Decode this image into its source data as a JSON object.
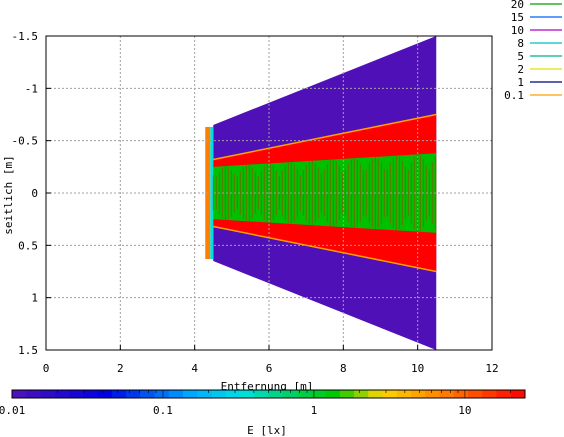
{
  "chart_data": {
    "type": "heatmap",
    "xlabel": "Entfernung [m]",
    "ylabel": "seitlich [m]",
    "xlim": [
      0,
      12
    ],
    "ylim": [
      1.5,
      -1.5
    ],
    "x_ticks": [
      "0",
      "2",
      "4",
      "6",
      "8",
      "10",
      "12"
    ],
    "y_ticks": [
      "-1.5",
      "-1",
      "-0.5",
      "0",
      "0.5",
      "1",
      "1.5"
    ],
    "grid": true,
    "legend_position": "top-right",
    "legend": [
      {
        "label": "20",
        "color": "#00a000"
      },
      {
        "label": "15",
        "color": "#0060ff"
      },
      {
        "label": "10",
        "color": "#b000c0"
      },
      {
        "label": "8",
        "color": "#00c0c0"
      },
      {
        "label": "5",
        "color": "#00b080"
      },
      {
        "label": "2",
        "color": "#e0e000"
      },
      {
        "label": "1",
        "color": "#000080"
      },
      {
        "label": "0.1",
        "color": "#ffa000"
      }
    ],
    "regions": [
      {
        "level": "0.1",
        "color": "#5010b8",
        "x_start": 4.5,
        "x_end": 10.5,
        "half_width_start": 0.65,
        "half_width_end": 1.5
      },
      {
        "level": "1",
        "color": "#ff0000",
        "x_start": 4.5,
        "x_end": 10.5,
        "half_width_start": 0.32,
        "half_width_end": 0.75
      },
      {
        "level": "10",
        "color": "#00c000",
        "x_start": 4.5,
        "x_end": 10.5,
        "half_width_start": 0.25,
        "half_width_end": 0.38
      }
    ],
    "colorbar": {
      "label": "E [lx]",
      "scale": "log",
      "range": [
        0.01,
        25
      ],
      "tick_labels": [
        "0.01",
        "0.1",
        "1",
        "10"
      ],
      "tick_values": [
        0.01,
        0.1,
        1,
        10
      ]
    }
  }
}
